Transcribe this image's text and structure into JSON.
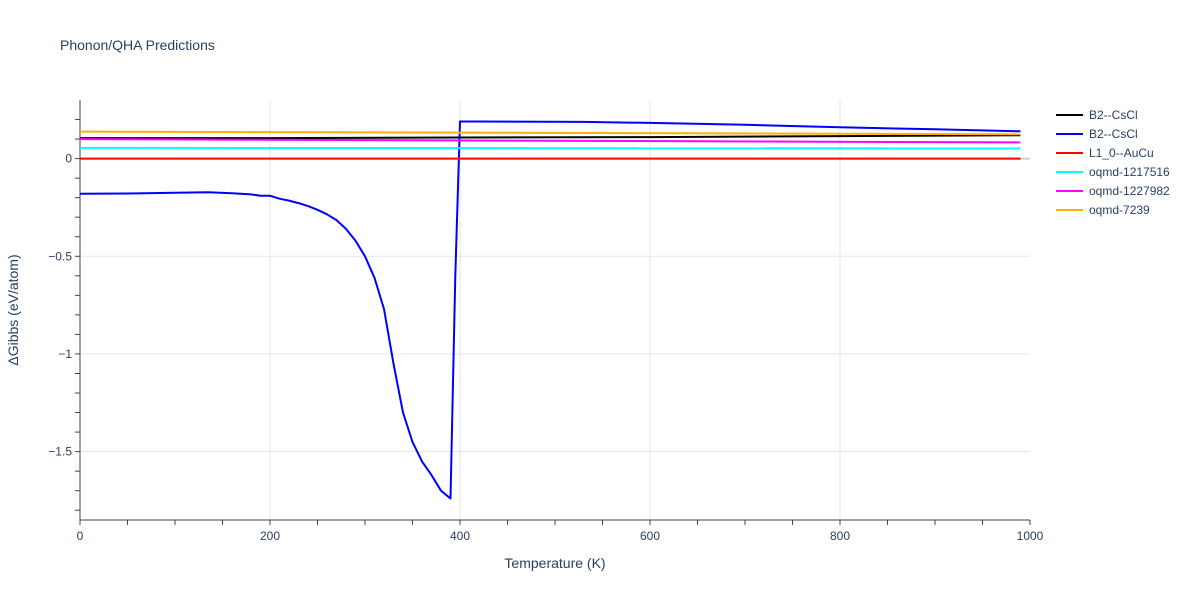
{
  "chart_data": {
    "type": "line",
    "title": "Phonon/QHA Predictions",
    "xlabel": "Temperature (K)",
    "ylabel": "ΔGibbs (eV/atom)",
    "xlim": [
      0,
      1000
    ],
    "ylim": [
      -1.85,
      0.3
    ],
    "x_ticks": [
      0,
      200,
      400,
      600,
      800,
      1000
    ],
    "x_tick_labels": [
      "0",
      "200",
      "400",
      "600",
      "800",
      "1000"
    ],
    "y_ticks": [
      0,
      -0.5,
      -1,
      -1.5
    ],
    "y_tick_labels": [
      "0",
      "−0.5",
      "−1",
      "−1.5"
    ],
    "grid": true,
    "legend_position": "right",
    "series": [
      {
        "name": "B2--CsCl",
        "color": "#000000",
        "x": [
          0,
          200,
          400,
          600,
          800,
          990
        ],
        "y": [
          0.105,
          0.105,
          0.108,
          0.11,
          0.115,
          0.12
        ]
      },
      {
        "name": "B2--CsCl",
        "color": "#0000ff",
        "x": [
          0,
          60,
          100,
          135,
          160,
          180,
          190,
          200,
          210,
          220,
          230,
          240,
          250,
          260,
          270,
          280,
          290,
          300,
          310,
          320,
          330,
          340,
          350,
          360,
          370,
          380,
          390,
          395,
          400,
          420,
          530,
          600,
          700,
          800,
          900,
          990
        ],
        "y": [
          -0.18,
          -0.178,
          -0.175,
          -0.172,
          -0.177,
          -0.183,
          -0.19,
          -0.19,
          -0.205,
          -0.215,
          -0.228,
          -0.243,
          -0.262,
          -0.285,
          -0.315,
          -0.36,
          -0.42,
          -0.5,
          -0.61,
          -0.77,
          -1.05,
          -1.3,
          -1.45,
          -1.55,
          -1.62,
          -1.7,
          -1.74,
          -0.6,
          0.19,
          0.19,
          0.188,
          0.183,
          0.173,
          0.16,
          0.15,
          0.14
        ]
      },
      {
        "name": "L1_0--AuCu",
        "color": "#ff0000",
        "x": [
          0,
          990
        ],
        "y": [
          0,
          0
        ]
      },
      {
        "name": "oqmd-1217516",
        "color": "#00ffff",
        "x": [
          0,
          990
        ],
        "y": [
          0.055,
          0.052
        ]
      },
      {
        "name": "oqmd-1227982",
        "color": "#ff00ff",
        "x": [
          0,
          990
        ],
        "y": [
          0.1,
          0.083
        ]
      },
      {
        "name": "oqmd-7239",
        "color": "#ffb000",
        "x": [
          0,
          990
        ],
        "y": [
          0.138,
          0.125
        ]
      }
    ]
  }
}
